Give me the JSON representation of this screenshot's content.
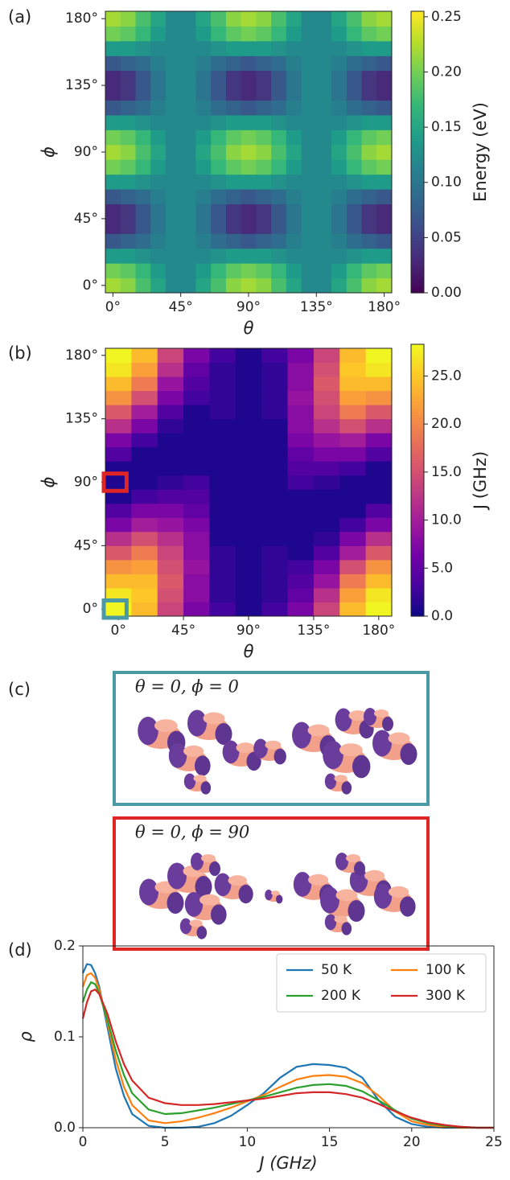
{
  "panel_labels": [
    "(a)",
    "(b)",
    "(c)",
    "(d)"
  ],
  "molecule_panels": [
    {
      "label": "θ = 0, ϕ = 0",
      "color": "#4a9aa5"
    },
    {
      "label": "θ = 0, ϕ = 90",
      "color": "#e02525"
    }
  ],
  "chart_data": [
    {
      "type": "heatmap",
      "colormap": "viridis",
      "x": [
        0,
        10,
        20,
        30,
        40,
        50,
        60,
        70,
        80,
        90,
        100,
        110,
        120,
        130,
        140,
        150,
        160,
        170,
        180
      ],
      "y": [
        0,
        10,
        20,
        30,
        40,
        50,
        60,
        70,
        80,
        90,
        100,
        110,
        120,
        130,
        140,
        150,
        160,
        170,
        180
      ],
      "z": [
        [
          0.22,
          0.21,
          0.18,
          0.15,
          0.12,
          0.12,
          0.15,
          0.18,
          0.21,
          0.22,
          0.21,
          0.18,
          0.15,
          0.12,
          0.12,
          0.15,
          0.18,
          0.21,
          0.22
        ],
        [
          0.2,
          0.19,
          0.17,
          0.14,
          0.12,
          0.12,
          0.14,
          0.17,
          0.19,
          0.2,
          0.19,
          0.17,
          0.14,
          0.12,
          0.12,
          0.14,
          0.17,
          0.19,
          0.2
        ],
        [
          0.14,
          0.14,
          0.13,
          0.12,
          0.12,
          0.12,
          0.12,
          0.13,
          0.14,
          0.14,
          0.14,
          0.13,
          0.12,
          0.12,
          0.12,
          0.12,
          0.13,
          0.14,
          0.14
        ],
        [
          0.07,
          0.08,
          0.09,
          0.11,
          0.12,
          0.12,
          0.11,
          0.09,
          0.08,
          0.07,
          0.08,
          0.09,
          0.11,
          0.12,
          0.12,
          0.11,
          0.09,
          0.08,
          0.07
        ],
        [
          0.03,
          0.04,
          0.07,
          0.1,
          0.12,
          0.12,
          0.1,
          0.07,
          0.04,
          0.03,
          0.04,
          0.07,
          0.1,
          0.12,
          0.12,
          0.1,
          0.07,
          0.04,
          0.03
        ],
        [
          0.03,
          0.04,
          0.07,
          0.1,
          0.12,
          0.12,
          0.1,
          0.07,
          0.04,
          0.03,
          0.04,
          0.07,
          0.1,
          0.12,
          0.12,
          0.1,
          0.07,
          0.04,
          0.03
        ],
        [
          0.07,
          0.08,
          0.09,
          0.11,
          0.12,
          0.12,
          0.11,
          0.09,
          0.08,
          0.07,
          0.08,
          0.09,
          0.11,
          0.12,
          0.12,
          0.11,
          0.09,
          0.08,
          0.07
        ],
        [
          0.14,
          0.14,
          0.13,
          0.12,
          0.12,
          0.12,
          0.12,
          0.13,
          0.14,
          0.14,
          0.14,
          0.13,
          0.12,
          0.12,
          0.12,
          0.12,
          0.13,
          0.14,
          0.14
        ],
        [
          0.2,
          0.19,
          0.17,
          0.14,
          0.12,
          0.12,
          0.14,
          0.17,
          0.19,
          0.2,
          0.19,
          0.17,
          0.14,
          0.12,
          0.12,
          0.14,
          0.17,
          0.19,
          0.2
        ],
        [
          0.22,
          0.21,
          0.18,
          0.15,
          0.12,
          0.12,
          0.15,
          0.18,
          0.21,
          0.22,
          0.21,
          0.18,
          0.15,
          0.12,
          0.12,
          0.15,
          0.18,
          0.21,
          0.22
        ],
        [
          0.2,
          0.19,
          0.17,
          0.14,
          0.12,
          0.12,
          0.14,
          0.17,
          0.19,
          0.2,
          0.19,
          0.17,
          0.14,
          0.12,
          0.12,
          0.14,
          0.17,
          0.19,
          0.2
        ],
        [
          0.14,
          0.14,
          0.13,
          0.12,
          0.12,
          0.12,
          0.12,
          0.13,
          0.14,
          0.14,
          0.14,
          0.13,
          0.12,
          0.12,
          0.12,
          0.12,
          0.13,
          0.14,
          0.14
        ],
        [
          0.07,
          0.08,
          0.09,
          0.11,
          0.12,
          0.12,
          0.11,
          0.09,
          0.08,
          0.07,
          0.08,
          0.09,
          0.11,
          0.12,
          0.12,
          0.11,
          0.09,
          0.08,
          0.07
        ],
        [
          0.03,
          0.04,
          0.07,
          0.1,
          0.12,
          0.12,
          0.1,
          0.07,
          0.04,
          0.03,
          0.04,
          0.07,
          0.1,
          0.12,
          0.12,
          0.1,
          0.07,
          0.04,
          0.03
        ],
        [
          0.03,
          0.04,
          0.07,
          0.1,
          0.12,
          0.12,
          0.1,
          0.07,
          0.04,
          0.03,
          0.04,
          0.07,
          0.1,
          0.12,
          0.12,
          0.1,
          0.07,
          0.04,
          0.03
        ],
        [
          0.07,
          0.08,
          0.09,
          0.11,
          0.12,
          0.12,
          0.11,
          0.09,
          0.08,
          0.07,
          0.08,
          0.09,
          0.11,
          0.12,
          0.12,
          0.11,
          0.09,
          0.08,
          0.07
        ],
        [
          0.14,
          0.14,
          0.13,
          0.12,
          0.12,
          0.12,
          0.12,
          0.13,
          0.14,
          0.14,
          0.14,
          0.13,
          0.12,
          0.12,
          0.12,
          0.12,
          0.13,
          0.14,
          0.14
        ],
        [
          0.2,
          0.19,
          0.17,
          0.14,
          0.12,
          0.12,
          0.14,
          0.17,
          0.19,
          0.2,
          0.19,
          0.17,
          0.14,
          0.12,
          0.12,
          0.14,
          0.17,
          0.19,
          0.2
        ],
        [
          0.22,
          0.21,
          0.18,
          0.15,
          0.12,
          0.12,
          0.15,
          0.18,
          0.21,
          0.22,
          0.21,
          0.18,
          0.15,
          0.12,
          0.12,
          0.15,
          0.18,
          0.21,
          0.22
        ]
      ],
      "xlim": [
        -5,
        185
      ],
      "ylim": [
        -5,
        185
      ],
      "xticks": [
        {
          "value": 0,
          "label": "0°"
        },
        {
          "value": 45,
          "label": "45°"
        },
        {
          "value": 90,
          "label": "90°"
        },
        {
          "value": 135,
          "label": "135°"
        },
        {
          "value": 180,
          "label": "180°"
        }
      ],
      "yticks": [
        {
          "value": 0,
          "label": "0°"
        },
        {
          "value": 45,
          "label": "45°"
        },
        {
          "value": 90,
          "label": "90°"
        },
        {
          "value": 135,
          "label": "135°"
        },
        {
          "value": 180,
          "label": "180°"
        }
      ],
      "xlabel": "θ",
      "ylabel": "ϕ",
      "colorbar": {
        "label": "Energy (eV)",
        "lim": [
          0,
          0.255
        ],
        "ticks": [
          {
            "value": 0,
            "label": "0.00"
          },
          {
            "value": 0.05,
            "label": "0.05"
          },
          {
            "value": 0.1,
            "label": "0.10"
          },
          {
            "value": 0.15,
            "label": "0.15"
          },
          {
            "value": 0.2,
            "label": "0.20"
          },
          {
            "value": 0.25,
            "label": "0.25"
          }
        ]
      }
    },
    {
      "type": "heatmap",
      "colormap": "plasma",
      "x": [
        0,
        18,
        36,
        54,
        72,
        90,
        108,
        126,
        144,
        162,
        180
      ],
      "y": [
        0,
        10,
        20,
        30,
        40,
        50,
        60,
        70,
        80,
        90,
        100,
        110,
        120,
        130,
        140,
        150,
        160,
        170,
        180
      ],
      "z": [
        [
          28,
          24,
          14,
          7,
          3,
          1,
          3,
          7,
          14,
          24,
          28
        ],
        [
          27,
          25,
          15,
          8,
          2,
          1,
          2,
          5,
          12,
          22,
          27
        ],
        [
          24,
          24,
          16,
          8,
          2,
          1,
          2,
          4,
          9,
          19,
          24
        ],
        [
          21,
          22,
          15,
          9,
          2,
          1,
          2,
          3,
          7,
          15,
          21
        ],
        [
          16,
          19,
          14,
          8,
          2,
          1,
          2,
          1,
          4,
          10,
          16
        ],
        [
          12,
          15,
          12,
          8,
          1,
          1,
          1,
          1,
          2,
          7,
          12
        ],
        [
          7,
          10,
          9,
          7,
          1,
          1,
          1,
          1,
          1,
          3,
          7
        ],
        [
          4,
          7,
          7,
          5,
          1,
          1,
          1,
          1,
          1,
          1,
          4
        ],
        [
          1,
          3,
          4,
          4,
          1,
          1,
          1,
          1,
          1,
          1,
          1
        ],
        [
          1,
          1,
          2,
          3,
          1,
          1,
          1,
          3,
          2,
          1,
          1
        ],
        [
          1,
          1,
          1,
          1,
          1,
          1,
          1,
          4,
          4,
          3,
          1
        ],
        [
          4,
          1,
          1,
          1,
          1,
          1,
          1,
          5,
          7,
          7,
          4
        ],
        [
          7,
          3,
          1,
          1,
          1,
          1,
          1,
          7,
          9,
          10,
          7
        ],
        [
          12,
          7,
          2,
          1,
          1,
          1,
          1,
          8,
          12,
          15,
          12
        ],
        [
          16,
          10,
          4,
          1,
          2,
          1,
          2,
          8,
          14,
          19,
          16
        ],
        [
          21,
          15,
          7,
          3,
          2,
          1,
          2,
          9,
          15,
          22,
          21
        ],
        [
          24,
          19,
          9,
          4,
          2,
          1,
          2,
          8,
          16,
          24,
          24
        ],
        [
          27,
          22,
          12,
          5,
          2,
          1,
          2,
          8,
          15,
          25,
          27
        ],
        [
          28,
          24,
          14,
          7,
          3,
          1,
          3,
          7,
          14,
          24,
          28
        ]
      ],
      "xlim": [
        -9,
        189
      ],
      "ylim": [
        -5,
        185
      ],
      "xticks": [
        {
          "value": 0,
          "label": "0°"
        },
        {
          "value": 45,
          "label": "45°"
        },
        {
          "value": 90,
          "label": "90°"
        },
        {
          "value": 135,
          "label": "135°"
        },
        {
          "value": 180,
          "label": "180°"
        }
      ],
      "yticks": [
        {
          "value": 0,
          "label": "0°"
        },
        {
          "value": 45,
          "label": "45°"
        },
        {
          "value": 90,
          "label": "90°"
        },
        {
          "value": 135,
          "label": "135°"
        },
        {
          "value": 180,
          "label": "180°"
        }
      ],
      "xlabel": "θ",
      "ylabel": "ϕ",
      "highlights": [
        {
          "x": 0,
          "y": 0,
          "color": "#4a9aa5"
        },
        {
          "x": 0,
          "y": 90,
          "color": "#e02525"
        }
      ],
      "colorbar": {
        "label": "J (GHz)",
        "lim": [
          0,
          28.3
        ],
        "ticks": [
          {
            "value": 0,
            "label": "0.0"
          },
          {
            "value": 5,
            "label": "5.0"
          },
          {
            "value": 10,
            "label": "10.0"
          },
          {
            "value": 15,
            "label": "15.0"
          },
          {
            "value": 20,
            "label": "20.0"
          },
          {
            "value": 25,
            "label": "25.0"
          }
        ]
      }
    },
    {
      "type": "line",
      "x": [
        0,
        0.25,
        0.5,
        0.75,
        1,
        1.5,
        2,
        2.5,
        3,
        4,
        5,
        6,
        7,
        8,
        9,
        10,
        11,
        12,
        13,
        14,
        15,
        16,
        17,
        18,
        19,
        20,
        21,
        22,
        23,
        24,
        25
      ],
      "series": [
        {
          "name": "50 K",
          "color": "#1f77b4",
          "values": [
            0.17,
            0.18,
            0.179,
            0.17,
            0.155,
            0.11,
            0.065,
            0.035,
            0.015,
            0.002,
            0,
            0,
            0.001,
            0.005,
            0.013,
            0.025,
            0.038,
            0.055,
            0.067,
            0.07,
            0.069,
            0.066,
            0.055,
            0.03,
            0.012,
            0.004,
            0.001,
            0,
            0,
            0,
            0
          ]
        },
        {
          "name": "100 K",
          "color": "#ff7f0e",
          "values": [
            0.155,
            0.168,
            0.17,
            0.165,
            0.152,
            0.115,
            0.075,
            0.045,
            0.025,
            0.008,
            0.005,
            0.007,
            0.011,
            0.016,
            0.022,
            0.029,
            0.036,
            0.045,
            0.053,
            0.057,
            0.058,
            0.056,
            0.049,
            0.035,
            0.018,
            0.007,
            0.003,
            0.001,
            0,
            0,
            0
          ]
        },
        {
          "name": "200 K",
          "color": "#2ca02c",
          "values": [
            0.138,
            0.152,
            0.16,
            0.158,
            0.148,
            0.118,
            0.085,
            0.058,
            0.038,
            0.02,
            0.015,
            0.016,
            0.019,
            0.022,
            0.026,
            0.03,
            0.034,
            0.039,
            0.044,
            0.047,
            0.048,
            0.046,
            0.04,
            0.03,
            0.019,
            0.01,
            0.005,
            0.002,
            0.001,
            0,
            0
          ]
        },
        {
          "name": "300 K",
          "color": "#d62728",
          "values": [
            0.12,
            0.138,
            0.15,
            0.152,
            0.147,
            0.125,
            0.095,
            0.07,
            0.052,
            0.033,
            0.027,
            0.025,
            0.025,
            0.026,
            0.028,
            0.03,
            0.032,
            0.035,
            0.038,
            0.039,
            0.039,
            0.037,
            0.033,
            0.026,
            0.018,
            0.011,
            0.006,
            0.003,
            0.001,
            0,
            0
          ]
        }
      ],
      "xlim": [
        0,
        25
      ],
      "ylim": [
        0,
        0.2
      ],
      "xticks": [
        0,
        5,
        10,
        15,
        20,
        25
      ],
      "yticks": [
        {
          "value": 0,
          "label": "0.0"
        },
        {
          "value": 0.1,
          "label": "0.1"
        },
        {
          "value": 0.2,
          "label": "0.2"
        }
      ],
      "xlabel": "J (GHz)",
      "ylabel": "ρ",
      "legend": "upper right"
    }
  ]
}
